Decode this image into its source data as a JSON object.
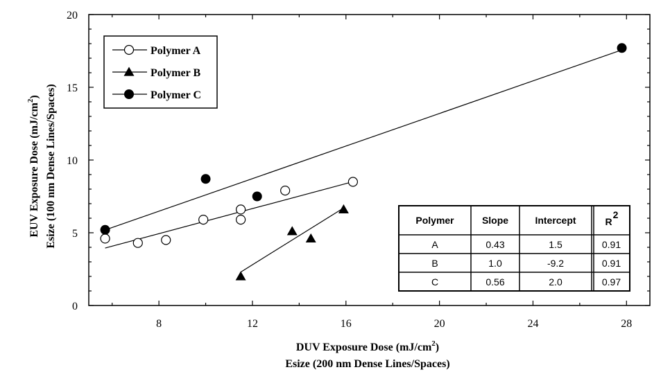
{
  "chart_data": {
    "type": "scatter",
    "xlabel": "DUV Exposure Dose (mJ/cm",
    "xlabel_sup": "2",
    "xlabel_close": ")",
    "xlabel2": "Esize (200 nm Dense Lines/Spaces)",
    "ylabel": "EUV Exposure Dose (mJ/cm",
    "ylabel_sup": "2",
    "ylabel_close": ")",
    "ylabel2": "Esize (100 nm Dense Lines/Spaces)",
    "xlim": [
      5,
      29
    ],
    "ylim": [
      0,
      20
    ],
    "xticks": [
      8,
      12,
      16,
      20,
      24,
      28
    ],
    "yticks": [
      0,
      5,
      10,
      15,
      20
    ],
    "legend_position": "top-left",
    "grid": false,
    "series": [
      {
        "name": "Polymer A",
        "marker": "open-circle",
        "points": [
          [
            5.7,
            4.6
          ],
          [
            7.1,
            4.3
          ],
          [
            8.3,
            4.5
          ],
          [
            9.9,
            5.9
          ],
          [
            11.5,
            5.9
          ],
          [
            11.5,
            6.6
          ],
          [
            13.4,
            7.9
          ],
          [
            16.3,
            8.5
          ]
        ],
        "fit": {
          "slope": 0.43,
          "intercept": 1.5,
          "x_range": [
            5.7,
            16.3
          ]
        }
      },
      {
        "name": "Polymer B",
        "marker": "filled-triangle",
        "points": [
          [
            11.5,
            2.0
          ],
          [
            13.7,
            5.1
          ],
          [
            14.5,
            4.6
          ],
          [
            15.9,
            6.6
          ]
        ],
        "fit": {
          "slope": 1.0,
          "intercept": -9.2,
          "x_range": [
            11.5,
            15.9
          ]
        }
      },
      {
        "name": "Polymer C",
        "marker": "filled-circle",
        "points": [
          [
            5.7,
            5.2
          ],
          [
            10.0,
            8.7
          ],
          [
            12.2,
            7.5
          ],
          [
            27.8,
            17.7
          ]
        ],
        "fit": {
          "slope": 0.56,
          "intercept": 2.0,
          "x_range": [
            5.7,
            27.8
          ]
        }
      }
    ],
    "table": {
      "headers": [
        "Polymer",
        "Slope",
        "Intercept",
        "R",
        "2"
      ],
      "rows": [
        [
          "A",
          "0.43",
          "1.5",
          "0.91"
        ],
        [
          "B",
          "1.0",
          "-9.2",
          "0.91"
        ],
        [
          "C",
          "0.56",
          "2.0",
          "0.97"
        ]
      ]
    }
  }
}
